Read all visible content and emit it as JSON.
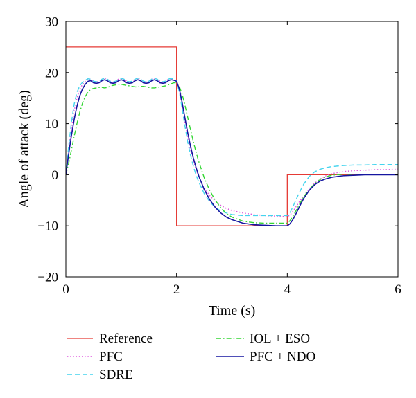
{
  "chart_data": {
    "type": "line",
    "xlabel": "Time (s)",
    "ylabel": "Angle of attack (deg)",
    "xlim": [
      0,
      6
    ],
    "ylim": [
      -20,
      30
    ],
    "xticks": [
      0,
      2,
      4,
      6
    ],
    "xtick_labels": [
      "0",
      "2",
      "4",
      "6"
    ],
    "yticks": [
      -20,
      -10,
      0,
      10,
      20,
      30
    ],
    "ytick_labels": [
      "−20",
      "−10",
      "0",
      "10",
      "20",
      "30"
    ],
    "grid": false,
    "legend": "bottom",
    "x": [
      0,
      0.05,
      0.1,
      0.15,
      0.2,
      0.25,
      0.3,
      0.35,
      0.4,
      0.45,
      0.5,
      0.55,
      0.6,
      0.65,
      0.7,
      0.75,
      0.8,
      0.85,
      0.9,
      0.95,
      1.0,
      1.05,
      1.1,
      1.15,
      1.2,
      1.25,
      1.3,
      1.35,
      1.4,
      1.45,
      1.5,
      1.55,
      1.6,
      1.65,
      1.7,
      1.75,
      1.8,
      1.85,
      1.9,
      1.95,
      2.0,
      2.05,
      2.1,
      2.15,
      2.2,
      2.25,
      2.3,
      2.35,
      2.4,
      2.5,
      2.6,
      2.7,
      2.8,
      2.9,
      3.0,
      3.2,
      3.4,
      3.6,
      3.8,
      4.0,
      4.05,
      4.1,
      4.15,
      4.2,
      4.25,
      4.3,
      4.4,
      4.5,
      4.6,
      4.7,
      4.8,
      5.0,
      5.2,
      5.4,
      5.6,
      5.8,
      6.0
    ],
    "series": [
      {
        "name": "Reference",
        "color": "#e53a35",
        "x": [
          0,
          2,
          2,
          4,
          4,
          6
        ],
        "values": [
          25,
          25,
          -10,
          -10,
          0,
          0
        ]
      },
      {
        "name": "PFC",
        "color": "#dd55dd",
        "values": [
          0,
          4.8,
          9.0,
          12.5,
          15.0,
          16.7,
          17.7,
          18.3,
          18.8,
          18.7,
          18.3,
          18.1,
          18.3,
          18.7,
          18.9,
          18.7,
          18.3,
          18.1,
          18.3,
          18.7,
          18.9,
          18.7,
          18.3,
          18.1,
          18.3,
          18.7,
          18.9,
          18.7,
          18.3,
          18.1,
          18.3,
          18.7,
          18.9,
          18.7,
          18.3,
          18.1,
          18.3,
          18.7,
          18.9,
          18.7,
          18.4,
          16.4,
          13.5,
          10.4,
          7.5,
          5.0,
          2.9,
          1.1,
          -0.4,
          -2.6,
          -4.1,
          -5.2,
          -6.0,
          -6.6,
          -7.0,
          -7.5,
          -7.8,
          -8.0,
          -8.1,
          -8.2,
          -7.9,
          -7.2,
          -6.4,
          -5.6,
          -4.8,
          -4.0,
          -2.7,
          -1.6,
          -0.8,
          -0.2,
          0.2,
          0.6,
          0.8,
          0.9,
          1.0,
          1.0,
          1.1
        ]
      },
      {
        "name": "SDRE",
        "color": "#44d4ee",
        "values": [
          0,
          5.5,
          10.2,
          13.8,
          16.1,
          17.4,
          18.1,
          18.5,
          18.8,
          18.7,
          18.3,
          18.2,
          18.3,
          18.7,
          18.9,
          18.7,
          18.3,
          18.2,
          18.3,
          18.7,
          18.9,
          18.7,
          18.3,
          18.2,
          18.3,
          18.7,
          18.9,
          18.7,
          18.3,
          18.2,
          18.3,
          18.7,
          18.9,
          18.7,
          18.3,
          18.2,
          18.3,
          18.7,
          18.9,
          18.7,
          18.4,
          16.2,
          13.0,
          9.6,
          6.5,
          3.9,
          1.8,
          0.0,
          -1.4,
          -3.7,
          -5.3,
          -6.4,
          -7.1,
          -7.5,
          -7.8,
          -8.0,
          -8.0,
          -8.0,
          -8.0,
          -8.0,
          -7.4,
          -6.3,
          -5.1,
          -3.9,
          -2.8,
          -1.8,
          -0.3,
          0.6,
          1.1,
          1.4,
          1.6,
          1.8,
          1.9,
          1.9,
          2.0,
          2.0,
          2.0
        ]
      },
      {
        "name": "IOL + ESO",
        "color": "#33d633",
        "values": [
          0,
          2.2,
          4.8,
          7.5,
          10.0,
          12.2,
          14.0,
          15.3,
          16.2,
          16.7,
          16.9,
          17.0,
          17.1,
          17.1,
          17.0,
          17.1,
          17.3,
          17.5,
          17.6,
          17.7,
          17.7,
          17.6,
          17.5,
          17.4,
          17.3,
          17.2,
          17.2,
          17.3,
          17.3,
          17.2,
          17.1,
          17.0,
          17.0,
          17.1,
          17.2,
          17.3,
          17.4,
          17.6,
          17.8,
          18.0,
          18.0,
          17.3,
          15.8,
          13.7,
          11.3,
          8.9,
          6.6,
          4.5,
          2.6,
          -0.6,
          -3.1,
          -5.0,
          -6.5,
          -7.6,
          -8.3,
          -9.1,
          -9.4,
          -9.5,
          -9.5,
          -9.5,
          -9.0,
          -8.2,
          -7.2,
          -6.2,
          -5.2,
          -4.3,
          -2.8,
          -1.7,
          -0.9,
          -0.4,
          -0.1,
          0.1,
          0.1,
          0.1,
          0.1,
          0.1,
          0.1
        ]
      },
      {
        "name": "PFC + NDO",
        "color": "#1515a0",
        "values": [
          0,
          4.0,
          7.6,
          10.8,
          13.4,
          15.4,
          16.8,
          17.7,
          18.3,
          18.4,
          18.0,
          17.9,
          18.0,
          18.4,
          18.6,
          18.4,
          18.0,
          17.9,
          18.0,
          18.4,
          18.6,
          18.4,
          18.0,
          17.9,
          18.0,
          18.4,
          18.6,
          18.4,
          18.0,
          17.9,
          18.0,
          18.4,
          18.6,
          18.4,
          18.0,
          17.9,
          18.0,
          18.4,
          18.6,
          18.5,
          18.3,
          16.8,
          14.2,
          11.2,
          8.3,
          5.7,
          3.4,
          1.5,
          -0.2,
          -2.9,
          -4.9,
          -6.4,
          -7.5,
          -8.3,
          -8.8,
          -9.5,
          -9.8,
          -9.9,
          -10.0,
          -10.0,
          -9.6,
          -8.8,
          -7.8,
          -6.7,
          -5.6,
          -4.6,
          -3.0,
          -1.9,
          -1.2,
          -0.8,
          -0.5,
          -0.2,
          -0.1,
          0.0,
          0.0,
          0.0,
          0.0
        ]
      }
    ]
  }
}
